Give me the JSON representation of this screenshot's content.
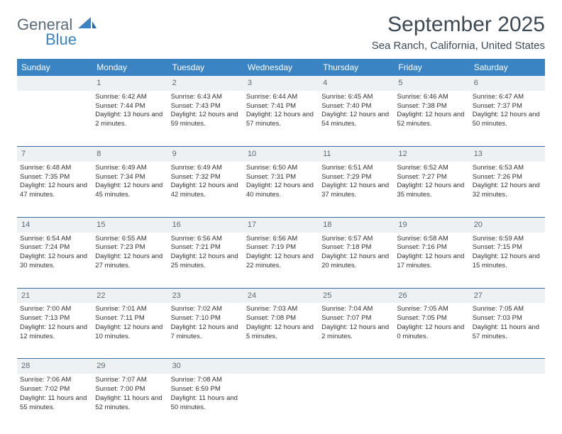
{
  "brand": {
    "general": "General",
    "blue": "Blue"
  },
  "header": {
    "title": "September 2025",
    "location": "Sea Ranch, California, United States"
  },
  "colors": {
    "header_bg": "#3b84c4",
    "header_text": "#ffffff",
    "daynum_bg": "#eef1f3",
    "daynum_text": "#5a6b78",
    "rule": "#3b6e9e",
    "title_text": "#3c4a56",
    "body_text": "#333333"
  },
  "weekdays": [
    "Sunday",
    "Monday",
    "Tuesday",
    "Wednesday",
    "Thursday",
    "Friday",
    "Saturday"
  ],
  "weeks": [
    {
      "nums": [
        "",
        "1",
        "2",
        "3",
        "4",
        "5",
        "6"
      ],
      "cells": [
        {
          "sunrise": "",
          "sunset": "",
          "daylight": ""
        },
        {
          "sunrise": "Sunrise: 6:42 AM",
          "sunset": "Sunset: 7:44 PM",
          "daylight": "Daylight: 13 hours and 2 minutes."
        },
        {
          "sunrise": "Sunrise: 6:43 AM",
          "sunset": "Sunset: 7:43 PM",
          "daylight": "Daylight: 12 hours and 59 minutes."
        },
        {
          "sunrise": "Sunrise: 6:44 AM",
          "sunset": "Sunset: 7:41 PM",
          "daylight": "Daylight: 12 hours and 57 minutes."
        },
        {
          "sunrise": "Sunrise: 6:45 AM",
          "sunset": "Sunset: 7:40 PM",
          "daylight": "Daylight: 12 hours and 54 minutes."
        },
        {
          "sunrise": "Sunrise: 6:46 AM",
          "sunset": "Sunset: 7:38 PM",
          "daylight": "Daylight: 12 hours and 52 minutes."
        },
        {
          "sunrise": "Sunrise: 6:47 AM",
          "sunset": "Sunset: 7:37 PM",
          "daylight": "Daylight: 12 hours and 50 minutes."
        }
      ]
    },
    {
      "nums": [
        "7",
        "8",
        "9",
        "10",
        "11",
        "12",
        "13"
      ],
      "cells": [
        {
          "sunrise": "Sunrise: 6:48 AM",
          "sunset": "Sunset: 7:35 PM",
          "daylight": "Daylight: 12 hours and 47 minutes."
        },
        {
          "sunrise": "Sunrise: 6:49 AM",
          "sunset": "Sunset: 7:34 PM",
          "daylight": "Daylight: 12 hours and 45 minutes."
        },
        {
          "sunrise": "Sunrise: 6:49 AM",
          "sunset": "Sunset: 7:32 PM",
          "daylight": "Daylight: 12 hours and 42 minutes."
        },
        {
          "sunrise": "Sunrise: 6:50 AM",
          "sunset": "Sunset: 7:31 PM",
          "daylight": "Daylight: 12 hours and 40 minutes."
        },
        {
          "sunrise": "Sunrise: 6:51 AM",
          "sunset": "Sunset: 7:29 PM",
          "daylight": "Daylight: 12 hours and 37 minutes."
        },
        {
          "sunrise": "Sunrise: 6:52 AM",
          "sunset": "Sunset: 7:27 PM",
          "daylight": "Daylight: 12 hours and 35 minutes."
        },
        {
          "sunrise": "Sunrise: 6:53 AM",
          "sunset": "Sunset: 7:26 PM",
          "daylight": "Daylight: 12 hours and 32 minutes."
        }
      ]
    },
    {
      "nums": [
        "14",
        "15",
        "16",
        "17",
        "18",
        "19",
        "20"
      ],
      "cells": [
        {
          "sunrise": "Sunrise: 6:54 AM",
          "sunset": "Sunset: 7:24 PM",
          "daylight": "Daylight: 12 hours and 30 minutes."
        },
        {
          "sunrise": "Sunrise: 6:55 AM",
          "sunset": "Sunset: 7:23 PM",
          "daylight": "Daylight: 12 hours and 27 minutes."
        },
        {
          "sunrise": "Sunrise: 6:56 AM",
          "sunset": "Sunset: 7:21 PM",
          "daylight": "Daylight: 12 hours and 25 minutes."
        },
        {
          "sunrise": "Sunrise: 6:56 AM",
          "sunset": "Sunset: 7:19 PM",
          "daylight": "Daylight: 12 hours and 22 minutes."
        },
        {
          "sunrise": "Sunrise: 6:57 AM",
          "sunset": "Sunset: 7:18 PM",
          "daylight": "Daylight: 12 hours and 20 minutes."
        },
        {
          "sunrise": "Sunrise: 6:58 AM",
          "sunset": "Sunset: 7:16 PM",
          "daylight": "Daylight: 12 hours and 17 minutes."
        },
        {
          "sunrise": "Sunrise: 6:59 AM",
          "sunset": "Sunset: 7:15 PM",
          "daylight": "Daylight: 12 hours and 15 minutes."
        }
      ]
    },
    {
      "nums": [
        "21",
        "22",
        "23",
        "24",
        "25",
        "26",
        "27"
      ],
      "cells": [
        {
          "sunrise": "Sunrise: 7:00 AM",
          "sunset": "Sunset: 7:13 PM",
          "daylight": "Daylight: 12 hours and 12 minutes."
        },
        {
          "sunrise": "Sunrise: 7:01 AM",
          "sunset": "Sunset: 7:11 PM",
          "daylight": "Daylight: 12 hours and 10 minutes."
        },
        {
          "sunrise": "Sunrise: 7:02 AM",
          "sunset": "Sunset: 7:10 PM",
          "daylight": "Daylight: 12 hours and 7 minutes."
        },
        {
          "sunrise": "Sunrise: 7:03 AM",
          "sunset": "Sunset: 7:08 PM",
          "daylight": "Daylight: 12 hours and 5 minutes."
        },
        {
          "sunrise": "Sunrise: 7:04 AM",
          "sunset": "Sunset: 7:07 PM",
          "daylight": "Daylight: 12 hours and 2 minutes."
        },
        {
          "sunrise": "Sunrise: 7:05 AM",
          "sunset": "Sunset: 7:05 PM",
          "daylight": "Daylight: 12 hours and 0 minutes."
        },
        {
          "sunrise": "Sunrise: 7:05 AM",
          "sunset": "Sunset: 7:03 PM",
          "daylight": "Daylight: 11 hours and 57 minutes."
        }
      ]
    },
    {
      "nums": [
        "28",
        "29",
        "30",
        "",
        "",
        "",
        ""
      ],
      "cells": [
        {
          "sunrise": "Sunrise: 7:06 AM",
          "sunset": "Sunset: 7:02 PM",
          "daylight": "Daylight: 11 hours and 55 minutes."
        },
        {
          "sunrise": "Sunrise: 7:07 AM",
          "sunset": "Sunset: 7:00 PM",
          "daylight": "Daylight: 11 hours and 52 minutes."
        },
        {
          "sunrise": "Sunrise: 7:08 AM",
          "sunset": "Sunset: 6:59 PM",
          "daylight": "Daylight: 11 hours and 50 minutes."
        },
        {
          "sunrise": "",
          "sunset": "",
          "daylight": ""
        },
        {
          "sunrise": "",
          "sunset": "",
          "daylight": ""
        },
        {
          "sunrise": "",
          "sunset": "",
          "daylight": ""
        },
        {
          "sunrise": "",
          "sunset": "",
          "daylight": ""
        }
      ]
    }
  ]
}
